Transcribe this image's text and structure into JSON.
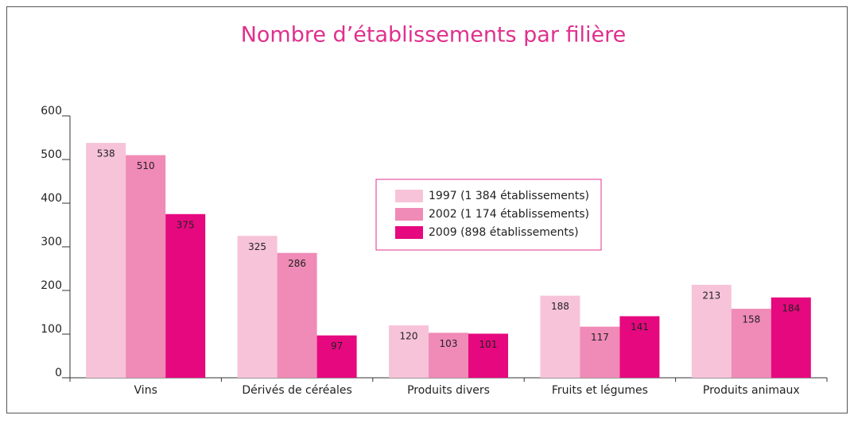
{
  "chart_data": {
    "type": "bar",
    "title": "Nombre d’établissements par filière",
    "categories": [
      "Vins",
      "Dérivés de céréales",
      "Produits divers",
      "Fruits et légumes",
      "Produits animaux"
    ],
    "series": [
      {
        "name": "1997 (1 384 établissements)",
        "color": "#f7c3d9",
        "values": [
          538,
          325,
          120,
          188,
          213
        ]
      },
      {
        "name": "2002 (1 174 établissements)",
        "color": "#f08ab6",
        "values": [
          510,
          286,
          103,
          117,
          158
        ]
      },
      {
        "name": "2009 (898 établissements)",
        "color": "#e6087f",
        "values": [
          375,
          97,
          101,
          141,
          184
        ]
      }
    ],
    "ylim": [
      0,
      600
    ],
    "yticks": [
      0,
      100,
      200,
      300,
      400,
      500,
      600
    ],
    "legend": "center"
  }
}
